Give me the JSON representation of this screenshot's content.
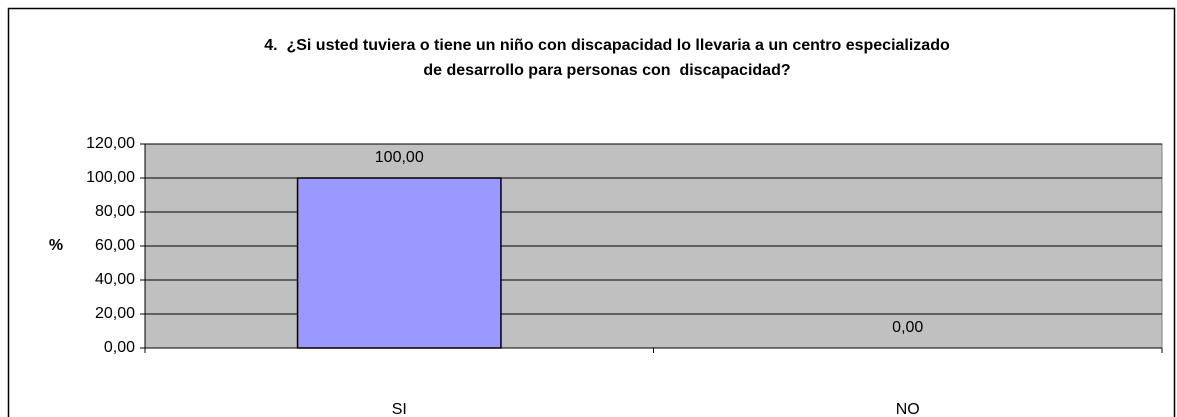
{
  "chart_data": {
    "type": "bar",
    "title": [
      "4.  ¿Si usted tuviera o tiene un niño con discapacidad lo llevaria a un centro especializado",
      "de desarrollo para personas con  discapacidad?"
    ],
    "y_label": "%",
    "categories": [
      "SI",
      "NO"
    ],
    "values": [
      100,
      0
    ],
    "value_labels": [
      "100,00",
      "0,00"
    ],
    "color": "#9999ff",
    "ylim": [
      0,
      120
    ],
    "yticks": [
      {
        "value": 0,
        "label": "0,00"
      },
      {
        "value": 20,
        "label": "20,00"
      },
      {
        "value": 40,
        "label": "40,00"
      },
      {
        "value": 60,
        "label": "60,00"
      },
      {
        "value": 80,
        "label": "80,00"
      },
      {
        "value": 100,
        "label": "100,00"
      },
      {
        "value": 120,
        "label": "120,00"
      }
    ],
    "grid": true
  }
}
